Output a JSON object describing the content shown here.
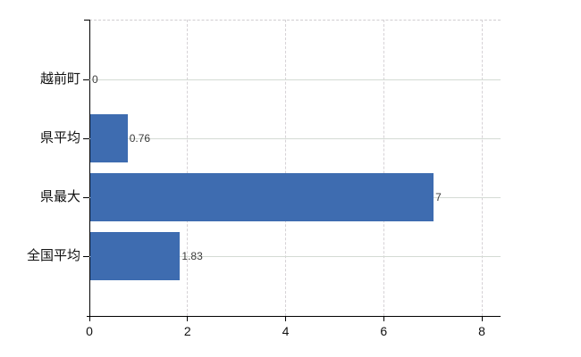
{
  "chart_data": {
    "type": "bar",
    "orientation": "horizontal",
    "title": "",
    "xlabel": "",
    "ylabel": "",
    "categories": [
      "越前町",
      "県平均",
      "県最大",
      "全国平均"
    ],
    "values": [
      0,
      0.76,
      7,
      1.83
    ],
    "value_labels": [
      "0",
      "0.76",
      "7",
      "1.83"
    ],
    "x_tick_labels": [
      "0",
      "2",
      "4",
      "6",
      "8"
    ],
    "x_tick_values": [
      0,
      2,
      4,
      6,
      8
    ],
    "xlim": [
      0,
      8.4
    ],
    "grid": true,
    "legend_position": "none",
    "bar_color": "#3e6cb0",
    "h_gridline_color": "#d4dbd4",
    "v_gridline_color": "#d6d2d6",
    "top_border_color": "#d0cdd0",
    "axis_color": "#000000",
    "tick_label_color": "#111111",
    "value_label_color": "#3c3c3c",
    "background_color": "#ffffff"
  }
}
